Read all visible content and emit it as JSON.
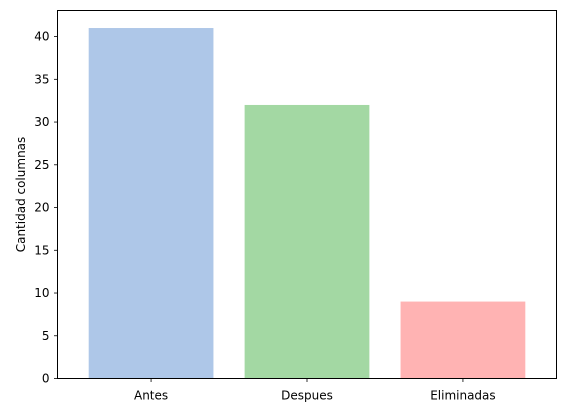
{
  "chart_data": {
    "type": "bar",
    "title": "",
    "xlabel": "",
    "ylabel": "Cantidad columnas",
    "categories": [
      "Antes",
      "Despues",
      "Eliminadas"
    ],
    "values": [
      41,
      32,
      9
    ],
    "colors": [
      "#aec7e8",
      "#a3d8a3",
      "#ffb3b3"
    ],
    "ylim": [
      0,
      43.05
    ],
    "yticks": [
      0,
      5,
      10,
      15,
      20,
      25,
      30,
      35,
      40
    ],
    "grid": false,
    "legend": "none"
  }
}
